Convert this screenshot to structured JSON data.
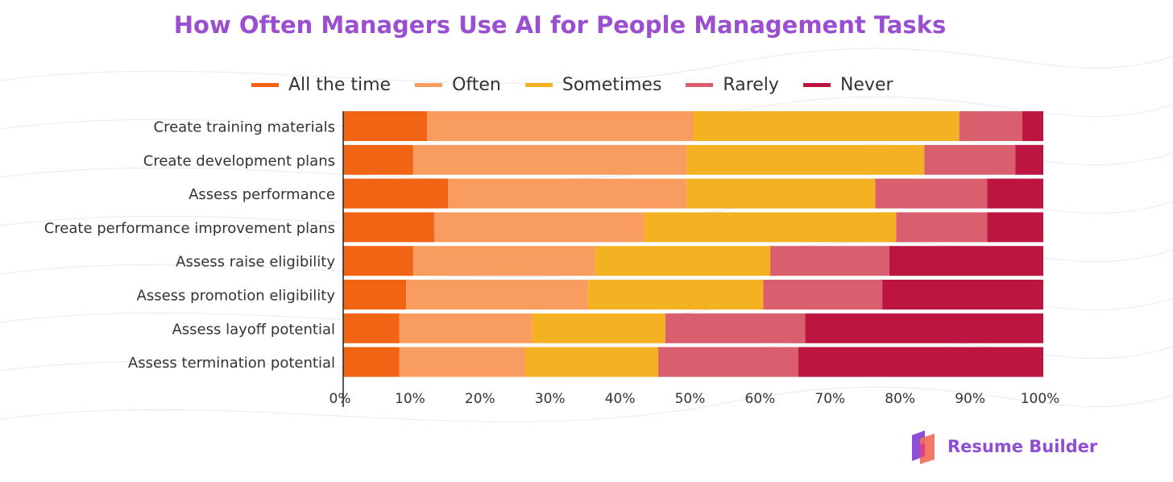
{
  "colors": {
    "title": "#9b4fd0",
    "all_the_time": "#f06414",
    "often": "#f89d5f",
    "sometimes": "#f4b223",
    "rarely": "#d95f6f",
    "never": "#bb1540",
    "brand_text": "#8e4fd6"
  },
  "brand": {
    "name": "Resume Builder",
    "logo_icon": "resume-builder-logo-icon"
  },
  "chart_data": {
    "type": "bar",
    "orientation": "horizontal",
    "stacked": true,
    "title": "How Often Managers Use AI for People Management Tasks",
    "xlabel": "",
    "ylabel": "",
    "xlim": [
      0,
      100
    ],
    "x_tick_labels": [
      "0%",
      "10%",
      "20%",
      "30%",
      "40%",
      "50%",
      "60%",
      "70%",
      "80%",
      "90%",
      "100%"
    ],
    "legend_position": "top",
    "grid": false,
    "categories": [
      "Create training materials",
      "Create development plans",
      "Assess performance",
      "Create performance improvement plans",
      "Assess raise eligibility",
      "Assess promotion eligibility",
      "Assess layoff potential",
      "Assess termination potential"
    ],
    "series": [
      {
        "name": "All the time",
        "values": [
          12,
          10,
          15,
          13,
          10,
          9,
          8,
          8
        ]
      },
      {
        "name": "Often",
        "values": [
          38,
          39,
          34,
          30,
          26,
          26,
          19,
          18
        ]
      },
      {
        "name": "Sometimes",
        "values": [
          38,
          34,
          27,
          36,
          25,
          25,
          19,
          19
        ]
      },
      {
        "name": "Rarely",
        "values": [
          9,
          13,
          16,
          13,
          17,
          17,
          20,
          20
        ]
      },
      {
        "name": "Never",
        "values": [
          3,
          4,
          8,
          8,
          22,
          23,
          34,
          35
        ]
      }
    ]
  }
}
